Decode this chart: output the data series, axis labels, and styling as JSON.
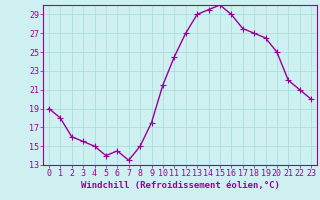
{
  "x": [
    0,
    1,
    2,
    3,
    4,
    5,
    6,
    7,
    8,
    9,
    10,
    11,
    12,
    13,
    14,
    15,
    16,
    17,
    18,
    19,
    20,
    21,
    22,
    23
  ],
  "y": [
    19,
    18,
    16,
    15.5,
    15,
    14,
    14.5,
    13.5,
    15,
    17.5,
    21.5,
    24.5,
    27,
    29,
    29.5,
    30,
    29,
    27.5,
    27,
    26.5,
    25,
    22,
    21,
    20
  ],
  "line_color": "#990099",
  "marker": "+",
  "marker_size": 4,
  "bg_color": "#cff0f0",
  "grid_color": "#aadddd",
  "xlabel": "Windchill (Refroidissement éolien,°C)",
  "ylim": [
    13,
    30
  ],
  "yticks": [
    13,
    15,
    17,
    19,
    21,
    23,
    25,
    27,
    29
  ],
  "xlim": [
    -0.5,
    23.5
  ],
  "xticks": [
    0,
    1,
    2,
    3,
    4,
    5,
    6,
    7,
    8,
    9,
    10,
    11,
    12,
    13,
    14,
    15,
    16,
    17,
    18,
    19,
    20,
    21,
    22,
    23
  ],
  "tick_label_color": "#990099",
  "axis_color": "#990099",
  "label_fontsize": 6.5,
  "tick_fontsize": 6.0,
  "linewidth": 1.0,
  "markeredgewidth": 0.8
}
